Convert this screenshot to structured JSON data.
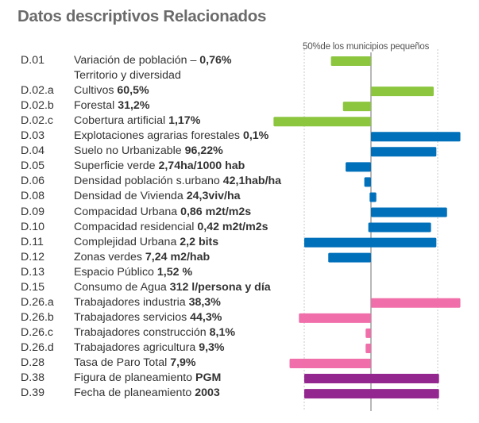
{
  "title": "Datos descriptivos Relacionados",
  "reference_label": "50%de los municipios pequeños",
  "colors": {
    "green": "#8cc63f",
    "blue": "#0070bb",
    "pink": "#f06ea9",
    "purple": "#93278f",
    "axis": "#888888",
    "grid": "#bbbbbb"
  },
  "chart_data": {
    "type": "bar",
    "orientation": "horizontal",
    "title": "Datos descriptivos Relacionados",
    "annotation": "50%de los municipios pequeños",
    "xlim": [
      -100,
      100
    ],
    "reference_lines": [
      -50,
      0,
      50
    ],
    "grid": true,
    "rows": [
      {
        "code": "D.01",
        "label": "Variación de población – ",
        "value_text": "0,76%",
        "color": "green",
        "bar": [
          -30,
          0
        ]
      },
      {
        "code": "",
        "label": "Territorio y diversidad",
        "value_text": "",
        "color": "",
        "bar": null
      },
      {
        "code": "D.02.a",
        "label": "Cultivos ",
        "value_text": "60,5%",
        "color": "green",
        "bar": [
          0,
          47
        ]
      },
      {
        "code": "D.02.b",
        "label": "Forestal ",
        "value_text": "31,2%",
        "color": "green",
        "bar": [
          -21,
          0
        ]
      },
      {
        "code": "D.02.c",
        "label": "Cobertura artificial ",
        "value_text": "1,17%",
        "color": "green",
        "bar": [
          -73,
          0
        ]
      },
      {
        "code": "D.03",
        "label": "Explotaciones agrarias forestales ",
        "value_text": "0,1%",
        "color": "blue",
        "bar": [
          0,
          67
        ]
      },
      {
        "code": "D.04",
        "label": "Suelo no Urbanizable ",
        "value_text": "96,22%",
        "color": "blue",
        "bar": [
          0,
          49
        ]
      },
      {
        "code": "D.05",
        "label": "Superficie verde  ",
        "value_text": "2,74ha/1000 hab",
        "color": "blue",
        "bar": [
          -19,
          0
        ]
      },
      {
        "code": "D.06",
        "label": "Densidad  población s.urbano ",
        "value_text": "42,1hab/ha",
        "color": "blue",
        "bar": [
          -5,
          0
        ]
      },
      {
        "code": "D.08",
        "label": "Densidad de Vivienda ",
        "value_text": "24,3viv/ha",
        "color": "blue",
        "bar": [
          -1,
          4
        ]
      },
      {
        "code": "D.09",
        "label": "Compacidad Urbana ",
        "value_text": "0,86 m2t/m2s",
        "color": "blue",
        "bar": [
          0,
          57
        ]
      },
      {
        "code": "D.10",
        "label": "Compacidad residencial ",
        "value_text": "0,42 m2t/m2s",
        "color": "blue",
        "bar": [
          -2,
          45
        ]
      },
      {
        "code": "D.11",
        "label": "Complejidad Urbana ",
        "value_text": "2,2 bits",
        "color": "blue",
        "bar": [
          -50,
          49
        ]
      },
      {
        "code": "D.12",
        "label": "Zonas verdes ",
        "value_text": "7,24 m2/hab",
        "color": "blue",
        "bar": [
          -32,
          0
        ]
      },
      {
        "code": "D.13",
        "label": "Espacio Público ",
        "value_text": "1,52 %",
        "color": "",
        "bar": null
      },
      {
        "code": "D.15",
        "label": "Consumo de Agua ",
        "value_text": "312 l/persona y día",
        "color": "",
        "bar": null
      },
      {
        "code": "D.26.a",
        "label": "Trabajadores industria  ",
        "value_text": "38,3%",
        "color": "pink",
        "bar": [
          0,
          67
        ]
      },
      {
        "code": "D.26.b",
        "label": "Trabajadores servicios  ",
        "value_text": "44,3%",
        "color": "pink",
        "bar": [
          -54,
          0
        ]
      },
      {
        "code": "D.26.c",
        "label": "Trabajadores construcción ",
        "value_text": "8,1%",
        "color": "pink",
        "bar": [
          -4,
          0
        ]
      },
      {
        "code": "D.26.d",
        "label": "Trabajadores agricultura ",
        "value_text": "9,3%",
        "color": "pink",
        "bar": [
          -4,
          0
        ]
      },
      {
        "code": "D.28",
        "label": "Tasa de Paro Total ",
        "value_text": "7,9%",
        "color": "pink",
        "bar": [
          -61,
          0
        ]
      },
      {
        "code": "D.38",
        "label": "Figura de planeamiento ",
        "value_text": "PGM",
        "color": "purple",
        "bar": [
          -50,
          51
        ]
      },
      {
        "code": "D.39",
        "label": "Fecha de planeamiento ",
        "value_text": "2003",
        "color": "purple",
        "bar": [
          -50,
          51
        ]
      }
    ]
  }
}
